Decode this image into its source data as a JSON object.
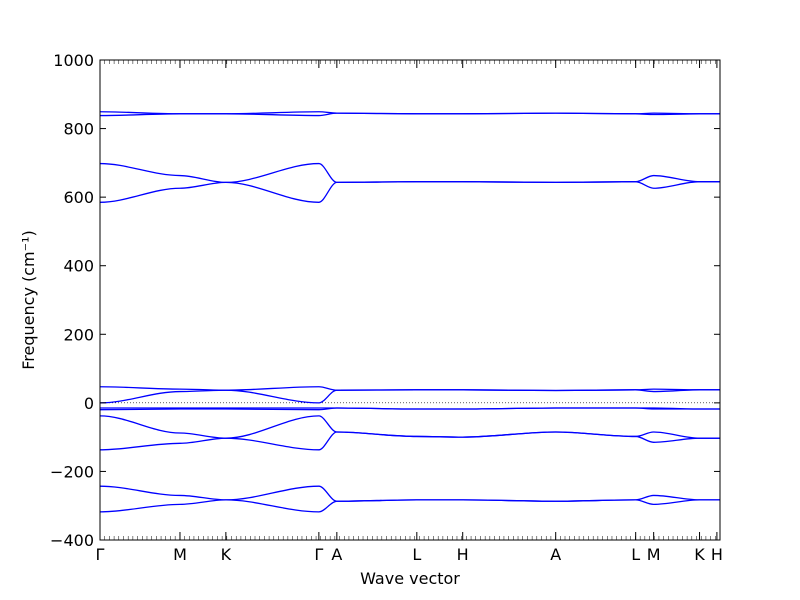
{
  "chart_data": {
    "type": "line",
    "title": "",
    "xlabel": "Wave vector",
    "ylabel": "Frequency (cm⁻¹)",
    "ylim": [
      -400,
      1000
    ],
    "yticks": [
      -400,
      -200,
      0,
      200,
      400,
      600,
      800,
      1000
    ],
    "x_symmetry_points": [
      {
        "label": "Γ",
        "x": 0.0
      },
      {
        "label": "M",
        "x": 0.129
      },
      {
        "label": "K",
        "x": 0.203
      },
      {
        "label": "Γ",
        "x": 0.353
      },
      {
        "label": "A",
        "x": 0.382
      },
      {
        "label": "L",
        "x": 0.511
      },
      {
        "label": "H",
        "x": 0.585
      },
      {
        "label": "A",
        "x": 0.735
      },
      {
        "label": "L",
        "x": 0.864
      },
      {
        "label": "M",
        "x": 0.893
      },
      {
        "label": "K",
        "x": 0.967
      },
      {
        "label": "H",
        "x": 0.995
      }
    ],
    "zero_line": true,
    "series_color": "#0000ff",
    "series": [
      {
        "x": [
          0,
          0.129,
          0.203,
          0.353,
          0.382,
          0.511,
          0.585,
          0.735,
          0.864,
          0.893,
          0.967,
          1.0
        ],
        "values": [
          849,
          843,
          843,
          849,
          845,
          843,
          843,
          845,
          843,
          845,
          843,
          843
        ]
      },
      {
        "x": [
          0,
          0.129,
          0.203,
          0.353,
          0.382,
          0.511,
          0.585,
          0.735,
          0.864,
          0.893,
          0.967,
          1.0
        ],
        "values": [
          838,
          843,
          843,
          838,
          845,
          843,
          843,
          845,
          843,
          841,
          843,
          843
        ]
      },
      {
        "x": [
          0,
          0.129,
          0.203,
          0.353,
          0.382,
          0.511,
          0.585,
          0.735,
          0.864,
          0.893,
          0.967,
          1.0
        ],
        "values": [
          698,
          663,
          643,
          698,
          643,
          645,
          645,
          643,
          645,
          663,
          645,
          645
        ]
      },
      {
        "x": [
          0,
          0.129,
          0.203,
          0.353,
          0.382,
          0.511,
          0.585,
          0.735,
          0.864,
          0.893,
          0.967,
          1.0
        ],
        "values": [
          585,
          626,
          643,
          585,
          643,
          645,
          645,
          643,
          645,
          626,
          645,
          645
        ]
      },
      {
        "x": [
          0,
          0.129,
          0.203,
          0.353,
          0.382,
          0.511,
          0.585,
          0.735,
          0.864,
          0.893,
          0.967,
          1.0
        ],
        "values": [
          47,
          40,
          37,
          47,
          37,
          38,
          38,
          36,
          38,
          40,
          38,
          38
        ]
      },
      {
        "x": [
          0,
          0.129,
          0.203,
          0.353,
          0.382,
          0.511,
          0.585,
          0.735,
          0.864,
          0.893,
          0.967,
          1.0
        ],
        "values": [
          0,
          33,
          37,
          0,
          37,
          38,
          38,
          36,
          38,
          33,
          38,
          38
        ]
      },
      {
        "x": [
          0,
          0.129,
          0.203,
          0.353,
          0.382,
          0.511,
          0.585,
          0.735,
          0.864,
          0.893,
          0.967,
          1.0
        ],
        "values": [
          -15,
          -15,
          -15,
          -15,
          -15,
          -18,
          -18,
          -15,
          -15,
          -15,
          -18,
          -18
        ]
      },
      {
        "x": [
          0,
          0.129,
          0.203,
          0.353,
          0.382,
          0.511,
          0.585,
          0.735,
          0.864,
          0.893,
          0.967,
          1.0
        ],
        "values": [
          -20,
          -18,
          -18,
          -20,
          -15,
          -18,
          -18,
          -15,
          -15,
          -18,
          -18,
          -18
        ]
      },
      {
        "x": [
          0,
          0.129,
          0.203,
          0.353,
          0.382,
          0.511,
          0.585,
          0.735,
          0.864,
          0.893,
          0.967,
          1.0
        ],
        "values": [
          -38,
          -88,
          -103,
          -38,
          -85,
          -98,
          -100,
          -85,
          -98,
          -85,
          -103,
          -103
        ]
      },
      {
        "x": [
          0,
          0.129,
          0.203,
          0.353,
          0.382,
          0.511,
          0.585,
          0.735,
          0.864,
          0.893,
          0.967,
          1.0
        ],
        "values": [
          -137,
          -118,
          -103,
          -137,
          -85,
          -98,
          -100,
          -85,
          -98,
          -115,
          -103,
          -103
        ]
      },
      {
        "x": [
          0,
          0.129,
          0.203,
          0.353,
          0.382,
          0.511,
          0.585,
          0.735,
          0.864,
          0.893,
          0.967,
          1.0
        ],
        "values": [
          -243,
          -270,
          -283,
          -243,
          -287,
          -283,
          -283,
          -287,
          -283,
          -270,
          -283,
          -283
        ]
      },
      {
        "x": [
          0,
          0.129,
          0.203,
          0.353,
          0.382,
          0.511,
          0.585,
          0.735,
          0.864,
          0.893,
          0.967,
          1.0
        ],
        "values": [
          -318,
          -296,
          -283,
          -318,
          -287,
          -283,
          -283,
          -287,
          -283,
          -296,
          -283,
          -283
        ]
      }
    ],
    "grid": false,
    "legend": "none"
  }
}
